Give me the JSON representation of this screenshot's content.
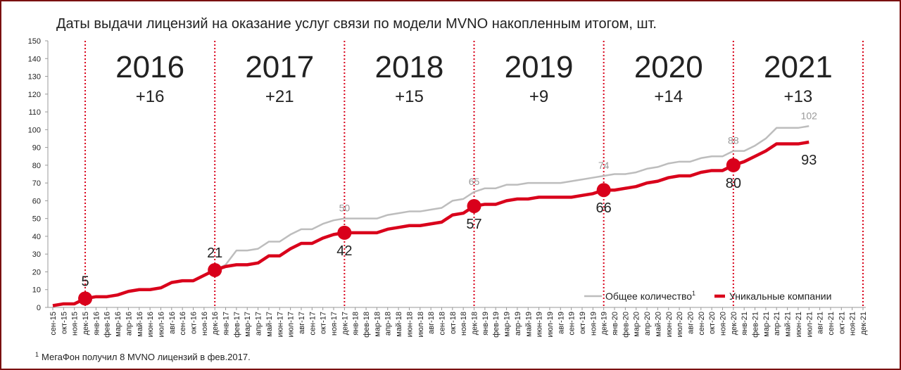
{
  "chart_data": {
    "type": "line",
    "title": "Даты выдачи лицензий на оказание услуг связи по модели MVNO накопленным итогом, шт.",
    "categories": [
      "сен-15",
      "окт-15",
      "ноя-15",
      "дек-15",
      "янв-16",
      "фев-16",
      "мар-16",
      "апр-16",
      "май-16",
      "июн-16",
      "июл-16",
      "авг-16",
      "сен-16",
      "окт-16",
      "ноя-16",
      "дек-16",
      "янв-17",
      "фев-17",
      "мар-17",
      "апр-17",
      "май-17",
      "июн-17",
      "июл-17",
      "авг-17",
      "сен-17",
      "окт-17",
      "ноя-17",
      "дек-17",
      "янв-18",
      "фев-18",
      "мар-18",
      "апр-18",
      "май-18",
      "июн-18",
      "июл-18",
      "авг-18",
      "сен-18",
      "окт-18",
      "ноя-18",
      "дек-18",
      "янв-19",
      "фев-19",
      "мар-19",
      "апр-19",
      "май-19",
      "июн-19",
      "июл-19",
      "авг-19",
      "сен-19",
      "окт-19",
      "ноя-19",
      "дек-19",
      "янв-20",
      "фев-20",
      "мар-20",
      "апр-20",
      "май-20",
      "июн-20",
      "июл-20",
      "авг-20",
      "сен-20",
      "окт-20",
      "ноя-20",
      "дек-20",
      "янв-21",
      "фев-21",
      "мар-21",
      "апр-21",
      "май-21",
      "июн-21",
      "июл-21",
      "авг-21",
      "сен-21",
      "окт-21",
      "ноя-21",
      "дек-21"
    ],
    "series": [
      {
        "name": "Общее количество",
        "color": "#bdbdbd",
        "values": [
          1,
          2,
          2,
          5,
          6,
          6,
          7,
          9,
          10,
          10,
          11,
          14,
          15,
          15,
          18,
          21,
          24,
          32,
          32,
          33,
          37,
          37,
          41,
          44,
          44,
          47,
          49,
          50,
          50,
          50,
          50,
          52,
          53,
          54,
          54,
          55,
          56,
          60,
          61,
          65,
          67,
          67,
          69,
          69,
          70,
          70,
          70,
          70,
          71,
          72,
          73,
          74,
          75,
          75,
          76,
          78,
          79,
          81,
          82,
          82,
          84,
          85,
          85,
          88,
          88,
          91,
          95,
          101,
          101,
          101,
          102,
          null,
          null,
          null,
          null,
          null
        ],
        "value_labels": [
          null,
          null,
          null,
          null,
          null,
          null,
          null,
          null,
          null,
          null,
          null,
          null,
          null,
          null,
          null,
          null,
          null,
          null,
          null,
          null,
          null,
          null,
          null,
          null,
          null,
          null,
          null,
          "50",
          null,
          null,
          null,
          null,
          null,
          null,
          null,
          null,
          null,
          null,
          null,
          "65",
          null,
          null,
          null,
          null,
          null,
          null,
          null,
          null,
          null,
          null,
          null,
          "74",
          null,
          null,
          null,
          null,
          null,
          null,
          null,
          null,
          null,
          null,
          null,
          "88",
          null,
          null,
          null,
          null,
          null,
          null,
          "102",
          null,
          null,
          null,
          null,
          null
        ]
      },
      {
        "name": "Уникальные компании",
        "color": "#d9001b",
        "values": [
          1,
          2,
          2,
          5,
          6,
          6,
          7,
          9,
          10,
          10,
          11,
          14,
          15,
          15,
          18,
          21,
          23,
          24,
          24,
          25,
          29,
          29,
          33,
          36,
          36,
          39,
          41,
          42,
          42,
          42,
          42,
          44,
          45,
          46,
          46,
          47,
          48,
          52,
          53,
          57,
          58,
          58,
          60,
          61,
          61,
          62,
          62,
          62,
          62,
          63,
          64,
          66,
          66,
          67,
          68,
          70,
          71,
          73,
          74,
          74,
          76,
          77,
          77,
          80,
          82,
          85,
          88,
          92,
          92,
          92,
          93,
          null,
          null,
          null,
          null,
          null
        ],
        "value_labels": [
          null,
          null,
          null,
          "5",
          null,
          null,
          null,
          null,
          null,
          null,
          null,
          null,
          null,
          null,
          null,
          "21",
          null,
          null,
          null,
          null,
          null,
          null,
          null,
          null,
          null,
          null,
          null,
          "42",
          null,
          null,
          null,
          null,
          null,
          null,
          null,
          null,
          null,
          null,
          null,
          "57",
          null,
          null,
          null,
          null,
          null,
          null,
          null,
          null,
          null,
          null,
          null,
          "66",
          null,
          null,
          null,
          null,
          null,
          null,
          null,
          null,
          null,
          null,
          null,
          "80",
          null,
          null,
          null,
          null,
          null,
          null,
          "93",
          null,
          null,
          null,
          null,
          null
        ]
      }
    ],
    "ylim": [
      0,
      150
    ],
    "yticks": [
      0,
      10,
      20,
      30,
      40,
      50,
      60,
      70,
      80,
      90,
      100,
      110,
      120,
      130,
      140,
      150
    ],
    "grid": false,
    "legend": "lower right",
    "annotations": [
      {
        "year": "2016",
        "delta": "+16"
      },
      {
        "year": "2017",
        "delta": "+21"
      },
      {
        "year": "2018",
        "delta": "+15"
      },
      {
        "year": "2019",
        "delta": "+9"
      },
      {
        "year": "2020",
        "delta": "+14"
      },
      {
        "year": "2021",
        "delta": "+13"
      }
    ],
    "footnote": {
      "mark": "1",
      "text": "МегаФон получил 8 MVNO лицензий в фев.2017."
    }
  }
}
